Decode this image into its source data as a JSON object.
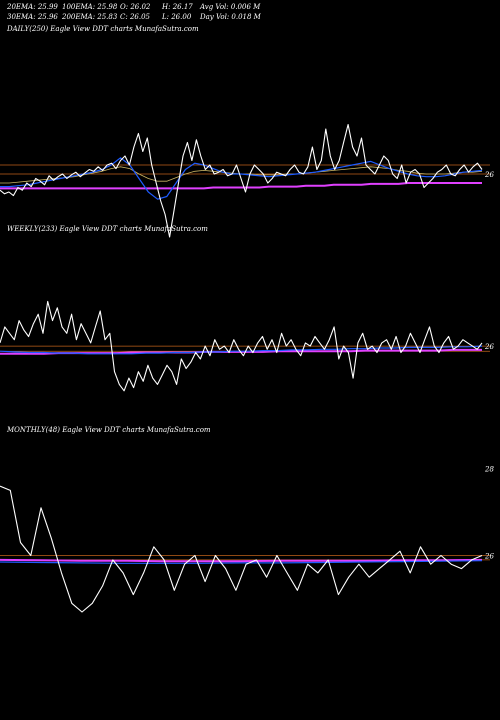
{
  "header": {
    "row1": [
      "20EMA: 25.99",
      "100EMA: 25.98",
      "O: 26.02",
      "H: 26.17",
      "Avg Vol: 0.006  M"
    ],
    "row2": [
      "30EMA: 25.96",
      "200EMA: 25.83",
      "C: 26.05",
      "L: 26.00",
      "Day Vol: 0.018 M"
    ]
  },
  "panels": {
    "daily": {
      "label": "DAILY(250) Eagle   View  DDT charts MunafaSutra.com"
    },
    "weekly": {
      "label": "WEEKLY(233) Eagle   View  DDT charts MunafaSutra.com"
    },
    "monthly": {
      "label": "MONTHLY(48) Eagle   View  DDT charts MunafaSutra.com"
    }
  },
  "colors": {
    "background": "#000000",
    "price": "#ffffff",
    "ema_fast": "#1e5bff",
    "ema_long": "#e040ff",
    "ref_line": "#c0621a",
    "ema_mid": "#c8b464"
  },
  "chart_data": [
    {
      "type": "line",
      "name": "daily",
      "ylim": [
        25.1,
        26.6
      ],
      "tick_labels": [
        "26"
      ],
      "tick_values": [
        26
      ],
      "ref_lines": [
        26.1,
        26.0
      ],
      "series": [
        {
          "role": "price",
          "values": [
            25.82,
            25.78,
            25.8,
            25.76,
            25.85,
            25.82,
            25.9,
            25.86,
            25.95,
            25.92,
            25.88,
            25.98,
            25.93,
            25.97,
            26.0,
            25.95,
            25.99,
            26.02,
            25.97,
            26.01,
            26.05,
            26.03,
            26.08,
            26.04,
            26.1,
            26.12,
            26.06,
            26.15,
            26.2,
            26.1,
            26.3,
            26.45,
            26.25,
            26.4,
            26.1,
            25.9,
            25.7,
            25.55,
            25.3,
            25.6,
            25.9,
            26.2,
            26.35,
            26.15,
            26.38,
            26.2,
            26.05,
            26.1,
            26.0,
            26.02,
            26.05,
            25.98,
            26.0,
            26.1,
            25.95,
            25.8,
            26.0,
            26.1,
            26.05,
            26.0,
            25.9,
            25.95,
            26.02,
            26.0,
            25.98,
            26.05,
            26.1,
            26.02,
            26.0,
            26.08,
            26.3,
            26.05,
            26.15,
            26.5,
            26.2,
            26.05,
            26.15,
            26.35,
            26.55,
            26.3,
            26.2,
            26.4,
            26.1,
            26.05,
            26.0,
            26.1,
            26.2,
            26.15,
            26.0,
            25.95,
            26.1,
            25.9,
            26.02,
            26.05,
            26.0,
            25.85,
            25.9,
            25.95,
            26.02,
            26.05,
            26.1,
            26.0,
            25.98,
            26.05,
            26.1,
            26.02,
            26.08,
            26.12,
            26.05
          ],
          "comment": ""
        },
        {
          "role": "ema_fast",
          "values": [
            25.86,
            25.86,
            25.87,
            25.88,
            25.9,
            25.92,
            25.94,
            25.96,
            25.98,
            26.0,
            26.02,
            26.05,
            26.1,
            26.18,
            26.1,
            25.95,
            25.8,
            25.72,
            25.75,
            25.9,
            26.05,
            26.12,
            26.1,
            26.06,
            26.02,
            26.0,
            26.0,
            25.99,
            25.98,
            25.97,
            25.98,
            25.99,
            26.0,
            26.01,
            26.02,
            26.04,
            26.06,
            26.08,
            26.1,
            26.12,
            26.14,
            26.1,
            26.06,
            26.03,
            26.0,
            25.98,
            25.97,
            25.97,
            25.98,
            26.0,
            26.02,
            26.03,
            26.04
          ]
        },
        {
          "role": "ema_mid",
          "values": [
            25.9,
            25.9,
            25.91,
            25.92,
            25.93,
            25.94,
            25.95,
            25.96,
            25.97,
            25.99,
            26.01,
            26.03,
            26.06,
            26.08,
            26.06,
            26.0,
            25.95,
            25.92,
            25.92,
            25.96,
            26.0,
            26.03,
            26.04,
            26.03,
            26.02,
            26.01,
            26.0,
            26.0,
            25.99,
            25.99,
            25.99,
            26.0,
            26.0,
            26.01,
            26.02,
            26.03,
            26.04,
            26.05,
            26.06,
            26.07,
            26.08,
            26.07,
            26.06,
            26.04,
            26.03,
            26.01,
            26.0,
            26.0,
            26.0,
            26.01,
            26.02,
            26.02,
            26.03
          ]
        },
        {
          "role": "ema_long",
          "values": [
            25.84,
            25.84,
            25.84,
            25.84,
            25.84,
            25.84,
            25.84,
            25.84,
            25.84,
            25.84,
            25.84,
            25.84,
            25.84,
            25.84,
            25.84,
            25.84,
            25.84,
            25.84,
            25.84,
            25.84,
            25.84,
            25.84,
            25.84,
            25.85,
            25.85,
            25.85,
            25.85,
            25.85,
            25.85,
            25.86,
            25.86,
            25.86,
            25.86,
            25.87,
            25.87,
            25.87,
            25.88,
            25.88,
            25.88,
            25.88,
            25.89,
            25.89,
            25.89,
            25.89,
            25.9,
            25.9,
            25.9,
            25.9,
            25.9,
            25.9,
            25.9,
            25.9,
            25.9
          ]
        }
      ]
    },
    {
      "type": "line",
      "name": "weekly",
      "ylim": [
        25.0,
        26.8
      ],
      "tick_labels": [
        "26"
      ],
      "tick_values": [
        26
      ],
      "ref_lines": [
        26.0,
        25.92
      ],
      "series": [
        {
          "role": "price",
          "values": [
            26.05,
            26.3,
            26.2,
            26.1,
            26.4,
            26.25,
            26.15,
            26.35,
            26.5,
            26.2,
            26.7,
            26.4,
            26.6,
            26.3,
            26.2,
            26.5,
            26.1,
            26.35,
            26.2,
            26.05,
            26.3,
            26.55,
            26.1,
            26.2,
            25.6,
            25.4,
            25.3,
            25.5,
            25.35,
            25.6,
            25.45,
            25.7,
            25.5,
            25.4,
            25.55,
            25.7,
            25.6,
            25.4,
            25.8,
            25.65,
            25.75,
            25.9,
            25.8,
            26.0,
            25.85,
            26.1,
            25.95,
            26.0,
            25.9,
            26.1,
            25.95,
            25.85,
            26.0,
            25.9,
            26.05,
            26.15,
            25.95,
            26.1,
            25.9,
            26.2,
            26.0,
            26.1,
            25.95,
            25.85,
            26.05,
            26.0,
            26.15,
            26.05,
            25.95,
            26.1,
            26.3,
            25.8,
            26.0,
            25.9,
            25.5,
            26.05,
            26.2,
            25.95,
            26.0,
            25.9,
            26.05,
            26.1,
            25.95,
            26.15,
            25.9,
            26.0,
            26.2,
            26.05,
            25.9,
            26.1,
            26.3,
            26.0,
            25.9,
            26.05,
            26.15,
            25.95,
            26.0,
            26.1,
            26.05,
            26.0,
            25.95,
            26.05
          ]
        },
        {
          "role": "ema_fast",
          "values": [
            25.92,
            25.91,
            25.9,
            25.9,
            25.89,
            25.89,
            25.88,
            25.88,
            25.88,
            25.88,
            25.89,
            25.89,
            25.9,
            25.9,
            25.91,
            25.91,
            25.92,
            25.92,
            25.93,
            25.93,
            25.94,
            25.94,
            25.95,
            25.95,
            25.96,
            25.96,
            25.97,
            25.97,
            25.98,
            25.98,
            25.98,
            25.99,
            25.99,
            26.0
          ]
        },
        {
          "role": "ema_long",
          "values": [
            25.88,
            25.88,
            25.88,
            25.88,
            25.89,
            25.89,
            25.89,
            25.89,
            25.89,
            25.9,
            25.9,
            25.9,
            25.9,
            25.9,
            25.91,
            25.91,
            25.91,
            25.91,
            25.91,
            25.92,
            25.92,
            25.92,
            25.92,
            25.92,
            25.92,
            25.93,
            25.93,
            25.93,
            25.93,
            25.93,
            25.93,
            25.94,
            25.94,
            25.94
          ]
        }
      ]
    },
    {
      "type": "line",
      "name": "monthly",
      "ylim": [
        24.4,
        28.2
      ],
      "tick_labels": [
        "28",
        "26"
      ],
      "tick_values": [
        28,
        26
      ],
      "ref_lines": [
        26.0,
        25.9
      ],
      "series": [
        {
          "role": "price",
          "values": [
            27.6,
            27.5,
            26.3,
            26.0,
            27.1,
            26.4,
            25.6,
            24.9,
            24.7,
            24.9,
            25.3,
            25.9,
            25.6,
            25.1,
            25.6,
            26.2,
            25.9,
            25.2,
            25.8,
            26.0,
            25.4,
            26.0,
            25.7,
            25.2,
            25.8,
            25.9,
            25.5,
            26.0,
            25.6,
            25.2,
            25.8,
            25.6,
            25.9,
            25.1,
            25.5,
            25.8,
            25.5,
            25.7,
            25.9,
            26.1,
            25.6,
            26.2,
            25.8,
            26.0,
            25.8,
            25.7,
            25.9,
            26.0
          ]
        },
        {
          "role": "ema_fast",
          "values": [
            25.85,
            25.84,
            25.83,
            25.82,
            25.82,
            25.82,
            25.83,
            25.83,
            25.84,
            25.85,
            25.86,
            25.87,
            25.88
          ]
        },
        {
          "role": "ema_long",
          "values": [
            25.9,
            25.89,
            25.88,
            25.88,
            25.87,
            25.87,
            25.87,
            25.88,
            25.88,
            25.88,
            25.89,
            25.89,
            25.9
          ]
        }
      ]
    }
  ]
}
